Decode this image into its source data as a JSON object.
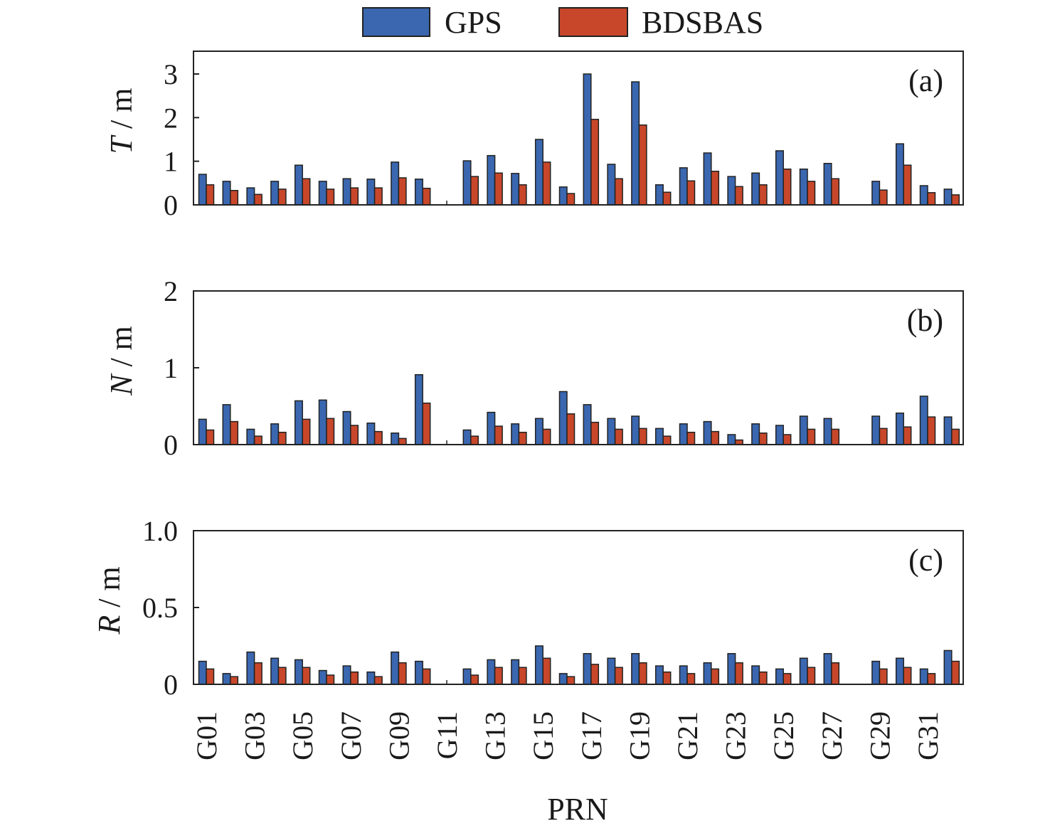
{
  "chart_data": {
    "type": "bar",
    "xlabel": "PRN",
    "legend": {
      "entries": [
        "GPS",
        "BDSBAS"
      ],
      "placement": "top-center"
    },
    "colors": {
      "GPS": "#3a67b0",
      "BDSBAS": "#c8472a"
    },
    "categories": [
      "G01",
      "G02",
      "G03",
      "G04",
      "G05",
      "G06",
      "G07",
      "G08",
      "G09",
      "G10",
      "G11",
      "G12",
      "G13",
      "G14",
      "G15",
      "G16",
      "G17",
      "G18",
      "G19",
      "G20",
      "G21",
      "G22",
      "G23",
      "G24",
      "G25",
      "G26",
      "G27",
      "G28",
      "G29",
      "G30",
      "G31",
      "G32"
    ],
    "x_tick_labels": [
      "G01",
      "G03",
      "G05",
      "G07",
      "G09",
      "G11",
      "G13",
      "G15",
      "G17",
      "G19",
      "G21",
      "G23",
      "G25",
      "G27",
      "G29",
      "G31"
    ],
    "panels": [
      {
        "tag": "(a)",
        "ylabel_var": "T",
        "ylabel_unit": " / m",
        "ylim": [
          0,
          3.3
        ],
        "yticks": [
          0,
          1,
          2,
          3
        ],
        "ytick_labels": [
          "0",
          "1",
          "2",
          "3"
        ],
        "series": [
          {
            "name": "GPS",
            "values": [
              0.7,
              0.54,
              0.39,
              0.54,
              0.91,
              0.54,
              0.6,
              0.59,
              0.98,
              0.59,
              null,
              1.01,
              1.13,
              0.72,
              1.5,
              0.41,
              3.0,
              0.93,
              2.82,
              0.46,
              0.85,
              1.19,
              0.65,
              0.73,
              1.24,
              0.82,
              0.95,
              null,
              0.54,
              1.4,
              0.44,
              0.36
            ]
          },
          {
            "name": "BDSBAS",
            "values": [
              0.46,
              0.33,
              0.24,
              0.36,
              0.6,
              0.36,
              0.39,
              0.39,
              0.62,
              0.38,
              null,
              0.65,
              0.73,
              0.46,
              0.98,
              0.26,
              1.96,
              0.6,
              1.83,
              0.29,
              0.55,
              0.77,
              0.42,
              0.46,
              0.82,
              0.54,
              0.6,
              null,
              0.34,
              0.91,
              0.28,
              0.23
            ]
          }
        ]
      },
      {
        "tag": "(b)",
        "ylabel_var": "N",
        "ylabel_unit": " / m",
        "ylim": [
          0,
          2
        ],
        "yticks": [
          0,
          1,
          2
        ],
        "ytick_labels": [
          "0",
          "1",
          "2"
        ],
        "series": [
          {
            "name": "GPS",
            "values": [
              0.33,
              0.52,
              0.2,
              0.27,
              0.57,
              0.58,
              0.43,
              0.28,
              0.15,
              0.91,
              null,
              0.19,
              0.42,
              0.27,
              0.34,
              0.69,
              0.52,
              0.34,
              0.37,
              0.21,
              0.27,
              0.3,
              0.13,
              0.27,
              0.25,
              0.37,
              0.34,
              null,
              0.37,
              0.41,
              0.63,
              0.36
            ]
          },
          {
            "name": "BDSBAS",
            "values": [
              0.19,
              0.3,
              0.11,
              0.16,
              0.33,
              0.34,
              0.25,
              0.17,
              0.08,
              0.54,
              null,
              0.11,
              0.24,
              0.16,
              0.2,
              0.4,
              0.29,
              0.2,
              0.21,
              0.11,
              0.16,
              0.17,
              0.06,
              0.15,
              0.13,
              0.2,
              0.2,
              null,
              0.21,
              0.23,
              0.36,
              0.2
            ]
          }
        ]
      },
      {
        "tag": "(c)",
        "ylabel_var": "R",
        "ylabel_unit": " / m",
        "ylim": [
          0,
          1.0
        ],
        "yticks": [
          0,
          0.5,
          1.0
        ],
        "ytick_labels": [
          "0",
          "0.5",
          "1.0"
        ],
        "series": [
          {
            "name": "GPS",
            "values": [
              0.15,
              0.07,
              0.21,
              0.17,
              0.16,
              0.09,
              0.12,
              0.08,
              0.21,
              0.15,
              null,
              0.1,
              0.16,
              0.16,
              0.25,
              0.07,
              0.2,
              0.17,
              0.2,
              0.12,
              0.12,
              0.14,
              0.2,
              0.12,
              0.1,
              0.17,
              0.2,
              null,
              0.15,
              0.17,
              0.1,
              0.22
            ]
          },
          {
            "name": "BDSBAS",
            "values": [
              0.1,
              0.05,
              0.14,
              0.11,
              0.11,
              0.06,
              0.08,
              0.05,
              0.14,
              0.1,
              null,
              0.06,
              0.11,
              0.11,
              0.17,
              0.05,
              0.13,
              0.11,
              0.14,
              0.08,
              0.07,
              0.1,
              0.14,
              0.08,
              0.07,
              0.11,
              0.14,
              null,
              0.1,
              0.11,
              0.07,
              0.15
            ]
          }
        ]
      }
    ]
  }
}
